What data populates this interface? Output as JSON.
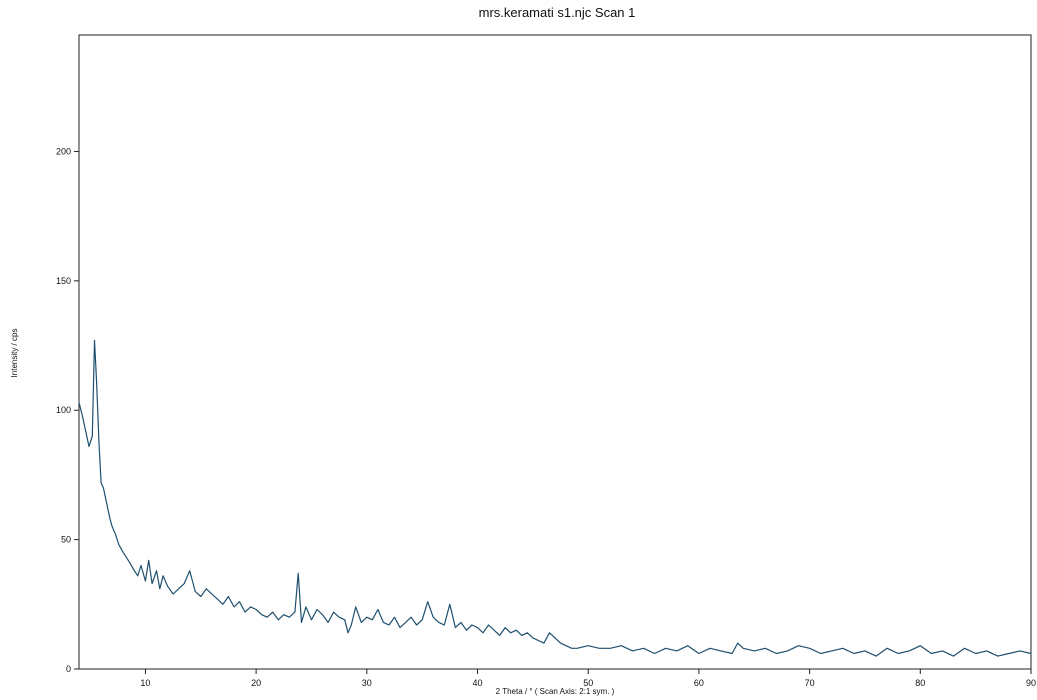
{
  "chart_data": {
    "type": "line",
    "title": "mrs.keramati s1.njc Scan 1",
    "xlabel": "2 Theta / °   ( Scan Axis: 2:1 sym. )",
    "ylabel": "Intensity / cps",
    "xlim": [
      4,
      90
    ],
    "ylim": [
      0,
      245
    ],
    "x_ticks": [
      10,
      20,
      30,
      40,
      50,
      60,
      70,
      80,
      90
    ],
    "y_ticks": [
      0,
      50,
      100,
      150,
      200
    ],
    "grid": false,
    "legend": "none",
    "line_color": "#1f4f6e",
    "series": [
      {
        "name": "",
        "x": [
          4.0,
          4.3,
          4.6,
          4.9,
          5.2,
          5.4,
          5.6,
          5.8,
          6.0,
          6.2,
          6.5,
          6.8,
          7.0,
          7.3,
          7.6,
          8.0,
          8.3,
          8.6,
          9.0,
          9.3,
          9.6,
          10.0,
          10.3,
          10.6,
          11.0,
          11.3,
          11.6,
          12.0,
          12.5,
          13.0,
          13.5,
          14.0,
          14.5,
          15.0,
          15.5,
          16.0,
          16.5,
          17.0,
          17.5,
          18.0,
          18.5,
          19.0,
          19.5,
          20.0,
          20.5,
          21.0,
          21.5,
          22.0,
          22.5,
          23.0,
          23.5,
          23.8,
          24.1,
          24.5,
          25.0,
          25.5,
          26.0,
          26.5,
          27.0,
          27.5,
          28.0,
          28.3,
          28.6,
          29.0,
          29.5,
          30.0,
          30.5,
          31.0,
          31.5,
          32.0,
          32.5,
          33.0,
          33.5,
          34.0,
          34.5,
          35.0,
          35.5,
          36.0,
          36.5,
          37.0,
          37.5,
          38.0,
          38.5,
          39.0,
          39.5,
          40.0,
          40.5,
          41.0,
          41.5,
          42.0,
          42.5,
          43.0,
          43.5,
          44.0,
          44.5,
          45.0,
          45.5,
          46.0,
          46.5,
          47.0,
          47.5,
          48.0,
          48.5,
          49.0,
          50.0,
          51.0,
          52.0,
          53.0,
          54.0,
          55.0,
          56.0,
          57.0,
          58.0,
          59.0,
          60.0,
          61.0,
          62.0,
          63.0,
          63.5,
          64.0,
          65.0,
          66.0,
          67.0,
          68.0,
          69.0,
          70.0,
          71.0,
          72.0,
          73.0,
          74.0,
          75.0,
          76.0,
          77.0,
          78.0,
          79.0,
          80.0,
          81.0,
          82.0,
          83.0,
          84.0,
          85.0,
          86.0,
          87.0,
          88.0,
          89.0,
          90.0
        ],
        "y": [
          103,
          98,
          92,
          86,
          90,
          127,
          110,
          88,
          72,
          70,
          64,
          58,
          55,
          52,
          48,
          45,
          43,
          41,
          38,
          36,
          40,
          34,
          42,
          33,
          38,
          31,
          36,
          32,
          29,
          31,
          33,
          38,
          30,
          28,
          31,
          29,
          27,
          25,
          28,
          24,
          26,
          22,
          24,
          23,
          21,
          20,
          22,
          19,
          21,
          20,
          22,
          37,
          18,
          24,
          19,
          23,
          21,
          18,
          22,
          20,
          19,
          14,
          17,
          24,
          18,
          20,
          19,
          23,
          18,
          17,
          20,
          16,
          18,
          20,
          17,
          19,
          26,
          20,
          18,
          17,
          25,
          16,
          18,
          15,
          17,
          16,
          14,
          17,
          15,
          13,
          16,
          14,
          15,
          13,
          14,
          12,
          11,
          10,
          14,
          12,
          10,
          9,
          8,
          8,
          9,
          8,
          8,
          9,
          7,
          8,
          6,
          8,
          7,
          9,
          6,
          8,
          7,
          6,
          10,
          8,
          7,
          8,
          6,
          7,
          9,
          8,
          6,
          7,
          8,
          6,
          7,
          5,
          8,
          6,
          7,
          9,
          6,
          7,
          5,
          8,
          6,
          7,
          5,
          6,
          7,
          6
        ]
      }
    ]
  }
}
